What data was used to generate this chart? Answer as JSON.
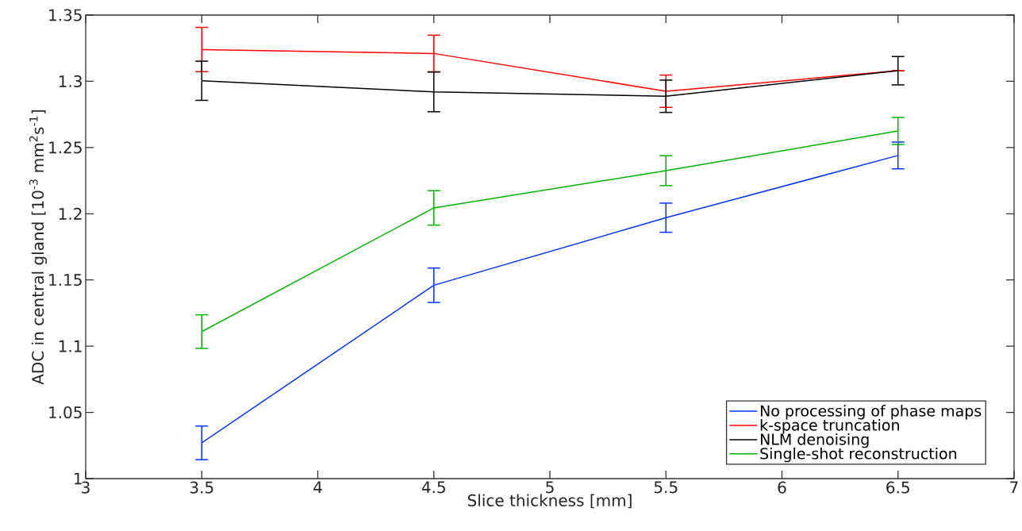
{
  "chart_data": {
    "type": "line",
    "xlabel": "Slice thickness [mm]",
    "ylabel": "ADC in central gland [10$^{-3}$ mm$^{2}$s$^{-1}$]",
    "x": [
      3.5,
      4.5,
      5.5,
      6.5
    ],
    "series": [
      {
        "name": "No processing of phase maps",
        "color": "#0033ff",
        "values": [
          1.027,
          1.146,
          1.197,
          1.244
        ],
        "errors": [
          0.0127,
          0.013,
          0.011,
          0.0101
        ]
      },
      {
        "name": "k-space truncation",
        "color": "#ff0000",
        "values": [
          1.324,
          1.321,
          1.2925,
          1.308
        ],
        "errors": [
          0.0167,
          0.0138,
          0.0122,
          null
        ]
      },
      {
        "name": "NLM denoising",
        "color": "#000000",
        "values": [
          1.3004,
          1.292,
          1.2887,
          1.308
        ],
        "errors": [
          0.0148,
          0.015,
          0.0122,
          0.0107
        ]
      },
      {
        "name": "Single-shot reconstruction",
        "color": "#00b400",
        "values": [
          1.111,
          1.2044,
          1.2325,
          1.2625
        ],
        "errors": [
          0.0127,
          0.013,
          0.0113,
          0.0102
        ]
      }
    ],
    "xlim": [
      3,
      7
    ],
    "xticks": [
      3,
      3.5,
      4,
      4.5,
      5,
      5.5,
      6,
      6.5,
      7
    ],
    "ylim": [
      1,
      1.35
    ],
    "yticks": [
      1,
      1.05,
      1.1,
      1.15,
      1.2,
      1.25,
      1.3,
      1.35
    ],
    "grid": false,
    "legend": "bottom right",
    "marker": "none",
    "line_style": "solid"
  }
}
